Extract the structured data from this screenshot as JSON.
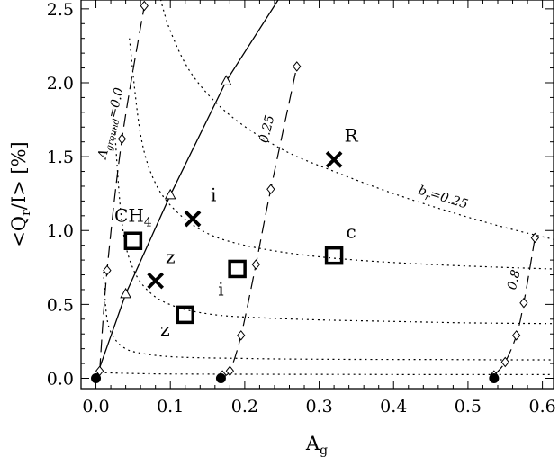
{
  "chart_data": {
    "type": "scatter",
    "xlabel": "A",
    "xlabel_sub": "g",
    "ylabel_parts": [
      "<Q",
      "r",
      "/I> [%]"
    ],
    "xlim": [
      -0.02,
      0.615
    ],
    "ylim": [
      -0.07,
      2.56
    ],
    "xticks": [
      0.0,
      0.1,
      0.2,
      0.3,
      0.4,
      0.5,
      0.6
    ],
    "xtick_labels": [
      "0.0",
      "0.1",
      "0.2",
      "0.3",
      "0.4",
      "0.5",
      "0.6"
    ],
    "yticks": [
      0.0,
      0.5,
      1.0,
      1.5,
      2.0,
      2.5
    ],
    "ytick_labels": [
      "0.0",
      "0.5",
      "1.0",
      "1.5",
      "2.0",
      "2.5"
    ],
    "grid": false,
    "series": [
      {
        "style": "dashed-diamond",
        "label_parts": [
          "A",
          "ground",
          "=0.0"
        ],
        "label_at": [
          0.025,
          1.72
        ],
        "x": [
          0.005,
          0.015,
          0.035,
          0.065
        ],
        "y": [
          0.05,
          0.73,
          1.62,
          2.52
        ]
      },
      {
        "style": "dashed-diamond",
        "label_parts": [
          "0.25"
        ],
        "label_at": [
          0.235,
          1.68
        ],
        "x": [
          0.17,
          0.18,
          0.195,
          0.215,
          0.235,
          0.27
        ],
        "y": [
          0.02,
          0.05,
          0.29,
          0.77,
          1.28,
          2.11
        ]
      },
      {
        "style": "dashed-diamond",
        "label_parts": [
          "0.8"
        ],
        "label_at": [
          0.567,
          0.66
        ],
        "x": [
          0.535,
          0.55,
          0.565,
          0.575,
          0.59
        ],
        "y": [
          0.02,
          0.11,
          0.29,
          0.51,
          0.95
        ]
      },
      {
        "style": "solid-triangle",
        "x": [
          0.0,
          0.04,
          0.1,
          0.175,
          0.25
        ],
        "y": [
          0.0,
          0.57,
          1.24,
          2.01,
          2.6
        ],
        "markers_x": [
          0.04,
          0.1,
          0.175
        ],
        "markers_y": [
          0.57,
          1.24,
          2.01
        ]
      },
      {
        "style": "dotted",
        "label_parts": [
          "b",
          "r",
          "=0.25"
        ],
        "label_at": [
          0.465,
          1.2
        ],
        "x": [
          0.085,
          0.1,
          0.13,
          0.18,
          0.25,
          0.32,
          0.4,
          0.48,
          0.55,
          0.615
        ],
        "y": [
          2.6,
          2.35,
          2.05,
          1.78,
          1.55,
          1.4,
          1.25,
          1.12,
          1.02,
          0.94
        ]
      },
      {
        "style": "dotted",
        "x": [
          0.045,
          0.06,
          0.08,
          0.11,
          0.15,
          0.2,
          0.27,
          0.35,
          0.45,
          0.55,
          0.615
        ],
        "y": [
          2.3,
          1.65,
          1.32,
          1.12,
          0.98,
          0.9,
          0.84,
          0.8,
          0.77,
          0.75,
          0.74
        ]
      },
      {
        "style": "dotted",
        "x": [
          0.025,
          0.035,
          0.05,
          0.075,
          0.11,
          0.16,
          0.22,
          0.3,
          0.4,
          0.5,
          0.615
        ],
        "y": [
          1.7,
          1.05,
          0.74,
          0.57,
          0.48,
          0.43,
          0.41,
          0.395,
          0.385,
          0.375,
          0.37
        ]
      },
      {
        "style": "dotted",
        "x": [
          0.01,
          0.015,
          0.025,
          0.04,
          0.06,
          0.09,
          0.13,
          0.19,
          0.26,
          0.35,
          0.45,
          0.55,
          0.615
        ],
        "y": [
          0.72,
          0.4,
          0.27,
          0.2,
          0.17,
          0.15,
          0.14,
          0.135,
          0.13,
          0.128,
          0.127,
          0.125,
          0.125
        ]
      },
      {
        "style": "dotted",
        "x": [
          0.005,
          0.03,
          0.08,
          0.15,
          0.25,
          0.35,
          0.45,
          0.55,
          0.615
        ],
        "y": [
          0.04,
          0.035,
          0.03,
          0.028,
          0.027,
          0.026,
          0.025,
          0.025,
          0.025
        ]
      },
      {
        "style": "filled-circle",
        "x": [
          0.0,
          0.168,
          0.535
        ],
        "y": [
          0.0,
          0.0,
          0.0
        ]
      }
    ],
    "annotations": {
      "squares": [
        {
          "x": 0.05,
          "y": 0.93,
          "label": "CH",
          "label_sub": "4",
          "label_at": [
            0.05,
            1.06
          ]
        },
        {
          "x": 0.12,
          "y": 0.43,
          "label": "z",
          "label_at": [
            0.093,
            0.29
          ]
        },
        {
          "x": 0.19,
          "y": 0.74,
          "label": "i",
          "label_at": [
            0.168,
            0.56
          ]
        },
        {
          "x": 0.32,
          "y": 0.83,
          "label": "c",
          "label_at": [
            0.343,
            0.95
          ]
        }
      ],
      "crosses": [
        {
          "x": 0.08,
          "y": 0.66,
          "label": "z",
          "label_at": [
            0.1,
            0.78
          ]
        },
        {
          "x": 0.13,
          "y": 1.08,
          "label": "i",
          "label_at": [
            0.158,
            1.2
          ]
        },
        {
          "x": 0.32,
          "y": 1.48,
          "label": "R",
          "label_at": [
            0.343,
            1.6
          ]
        }
      ]
    }
  }
}
